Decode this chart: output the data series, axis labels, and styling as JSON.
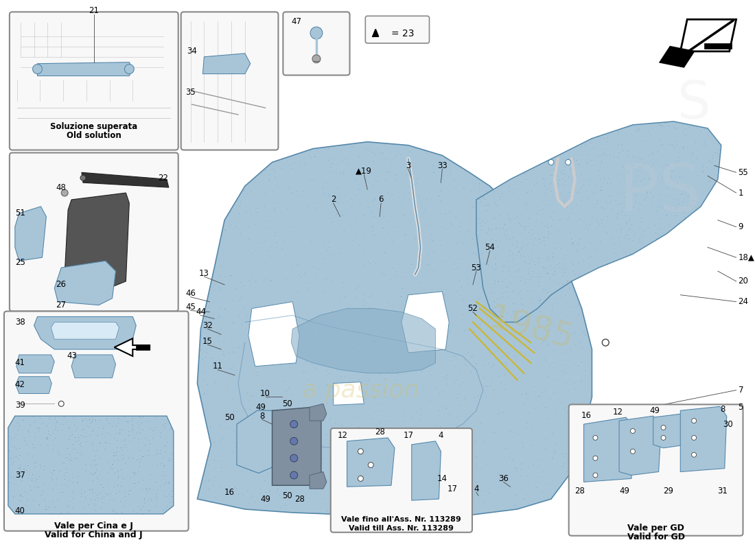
{
  "bg_color": "#ffffff",
  "mat_blue": "#a8c5d8",
  "mat_blue_mid": "#8ab0c8",
  "mat_outline": "#5588aa",
  "box_bg": "#f5f5f5",
  "box_ec": "#888888",
  "lc": "#444444",
  "fs": 8.5,
  "watermark1": "a passion",
  "watermark2": "1985",
  "label_top_left": [
    "Soluzione superata",
    "Old solution"
  ],
  "label_china": [
    "Vale per Cina e J",
    "Valid for China and J"
  ],
  "label_113289_1": "Vale fino all'Ass. Nr. 113289",
  "label_113289_2": "Valid till Ass. Nr. 113289",
  "label_gd_1": "Vale per GD",
  "label_gd_2": "Valid for GD",
  "triangle_label": "= 23"
}
